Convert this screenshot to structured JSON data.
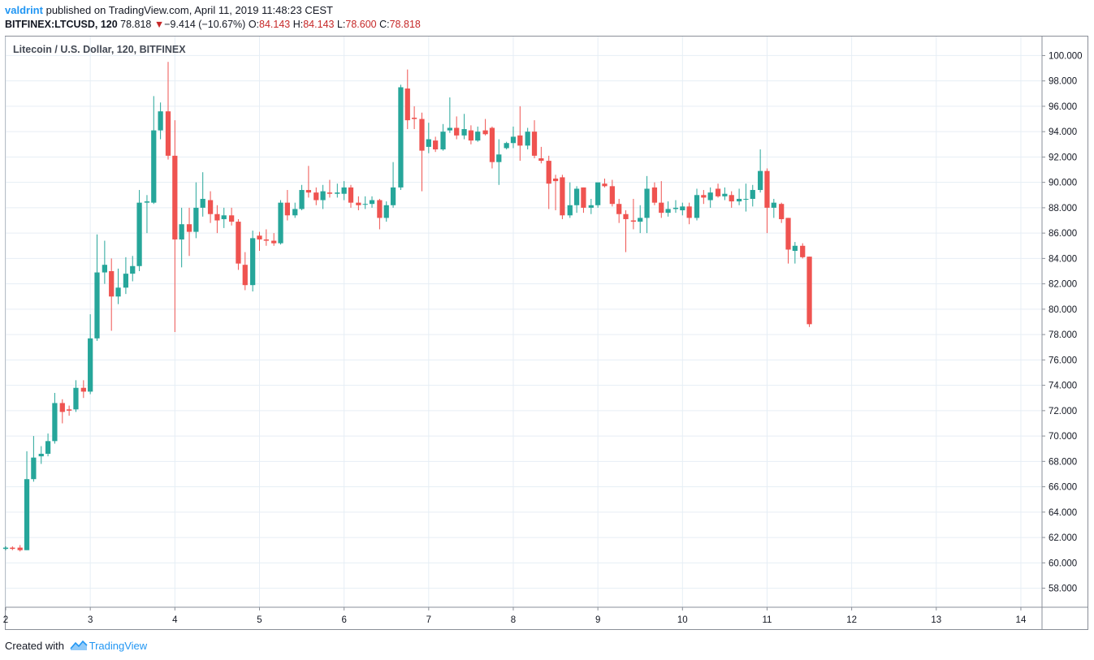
{
  "header": {
    "author": "valdrint",
    "published_text": "published on TradingView.com, April 11, 2019 11:48:23 CEST",
    "symbol": "BITFINEX:LTCUSD, 120",
    "last": "78.818",
    "change_arrow": "▼",
    "change": "−9.414 (−10.67%)",
    "o_label": "O:",
    "o_value": "84.143",
    "h_label": "H:",
    "h_value": "84.143",
    "l_label": "L:",
    "l_value": "78.600",
    "c_label": "C:",
    "c_value": "78.818"
  },
  "footer": {
    "created_with": "Created with",
    "brand": "TradingView",
    "logo_icon": "tradingview-logo-icon"
  },
  "colors": {
    "up": "#26a69a",
    "down": "#ef5350",
    "grid": "#e6eef5",
    "axis_text": "#131722",
    "brand": "#2196f3"
  },
  "chart_data": {
    "type": "candlestick",
    "title": "Litecoin / U.S. Dollar, 120, BITFINEX",
    "x_tick_labels": [
      "2",
      "3",
      "4",
      "5",
      "6",
      "7",
      "8",
      "9",
      "10",
      "11",
      "12",
      "13",
      "14"
    ],
    "x_ticks": [
      2,
      3,
      4,
      5,
      6,
      7,
      8,
      9,
      10,
      11,
      12,
      13,
      14
    ],
    "xlim": [
      2.0,
      14.25
    ],
    "ylim": [
      56.5,
      101.5
    ],
    "y_ticks": [
      58,
      60,
      62,
      64,
      66,
      68,
      70,
      72,
      74,
      76,
      78,
      80,
      82,
      84,
      86,
      88,
      90,
      92,
      94,
      96,
      98,
      100
    ],
    "y_tick_labels": [
      "58.000",
      "60.000",
      "62.000",
      "64.000",
      "66.000",
      "68.000",
      "70.000",
      "72.000",
      "74.000",
      "76.000",
      "78.000",
      "80.000",
      "82.000",
      "84.000",
      "86.000",
      "88.000",
      "90.000",
      "92.000",
      "94.000",
      "96.000",
      "98.000",
      "100.000"
    ],
    "candle_interval_days": 0.0833,
    "grid": true,
    "candles": [
      {
        "t": 2.0,
        "o": 61.1,
        "h": 61.3,
        "l": 61.0,
        "c": 61.2
      },
      {
        "t": 2.08,
        "o": 61.2,
        "h": 61.3,
        "l": 61.0,
        "c": 61.1
      },
      {
        "t": 2.17,
        "o": 61.2,
        "h": 61.4,
        "l": 60.9,
        "c": 61.0
      },
      {
        "t": 2.25,
        "o": 61.0,
        "h": 68.8,
        "l": 61.0,
        "c": 66.6
      },
      {
        "t": 2.33,
        "o": 66.6,
        "h": 70.0,
        "l": 66.4,
        "c": 68.3
      },
      {
        "t": 2.42,
        "o": 68.4,
        "h": 69.2,
        "l": 67.8,
        "c": 68.6
      },
      {
        "t": 2.5,
        "o": 68.6,
        "h": 70.2,
        "l": 68.4,
        "c": 69.6
      },
      {
        "t": 2.58,
        "o": 69.6,
        "h": 73.4,
        "l": 69.4,
        "c": 72.6
      },
      {
        "t": 2.67,
        "o": 72.6,
        "h": 72.9,
        "l": 71.0,
        "c": 71.9
      },
      {
        "t": 2.75,
        "o": 72.1,
        "h": 72.4,
        "l": 71.6,
        "c": 72.0
      },
      {
        "t": 2.83,
        "o": 72.1,
        "h": 74.4,
        "l": 71.9,
        "c": 73.8
      },
      {
        "t": 2.92,
        "o": 73.8,
        "h": 74.4,
        "l": 73.0,
        "c": 73.5
      },
      {
        "t": 3.0,
        "o": 73.5,
        "h": 79.6,
        "l": 73.3,
        "c": 77.7
      },
      {
        "t": 3.08,
        "o": 77.7,
        "h": 85.9,
        "l": 77.5,
        "c": 82.9
      },
      {
        "t": 3.17,
        "o": 82.9,
        "h": 85.4,
        "l": 82.0,
        "c": 83.5
      },
      {
        "t": 3.25,
        "o": 83.0,
        "h": 84.0,
        "l": 78.3,
        "c": 81.0
      },
      {
        "t": 3.33,
        "o": 81.0,
        "h": 83.2,
        "l": 80.4,
        "c": 81.7
      },
      {
        "t": 3.42,
        "o": 81.7,
        "h": 84.1,
        "l": 81.2,
        "c": 82.8
      },
      {
        "t": 3.5,
        "o": 82.8,
        "h": 84.2,
        "l": 82.2,
        "c": 83.4
      },
      {
        "t": 3.58,
        "o": 83.4,
        "h": 89.4,
        "l": 83.0,
        "c": 88.4
      },
      {
        "t": 3.67,
        "o": 88.4,
        "h": 89.0,
        "l": 86.0,
        "c": 88.5
      },
      {
        "t": 3.75,
        "o": 88.4,
        "h": 96.8,
        "l": 88.3,
        "c": 94.1
      },
      {
        "t": 3.83,
        "o": 94.1,
        "h": 96.3,
        "l": 93.4,
        "c": 95.6
      },
      {
        "t": 3.92,
        "o": 95.6,
        "h": 99.5,
        "l": 91.8,
        "c": 92.1
      },
      {
        "t": 4.0,
        "o": 92.1,
        "h": 94.9,
        "l": 78.2,
        "c": 85.5
      },
      {
        "t": 4.08,
        "o": 85.5,
        "h": 88.0,
        "l": 83.3,
        "c": 86.7
      },
      {
        "t": 4.17,
        "o": 86.7,
        "h": 88.0,
        "l": 84.2,
        "c": 86.1
      },
      {
        "t": 4.25,
        "o": 86.1,
        "h": 90.0,
        "l": 85.6,
        "c": 88.0
      },
      {
        "t": 4.33,
        "o": 88.0,
        "h": 90.8,
        "l": 87.3,
        "c": 88.7
      },
      {
        "t": 4.42,
        "o": 88.6,
        "h": 89.3,
        "l": 86.8,
        "c": 87.5
      },
      {
        "t": 4.5,
        "o": 87.5,
        "h": 88.2,
        "l": 86.0,
        "c": 87.0
      },
      {
        "t": 4.58,
        "o": 87.1,
        "h": 88.0,
        "l": 86.4,
        "c": 87.4
      },
      {
        "t": 4.67,
        "o": 87.4,
        "h": 88.0,
        "l": 86.6,
        "c": 86.9
      },
      {
        "t": 4.75,
        "o": 86.9,
        "h": 87.1,
        "l": 83.1,
        "c": 83.6
      },
      {
        "t": 4.83,
        "o": 83.5,
        "h": 84.5,
        "l": 81.5,
        "c": 81.9
      },
      {
        "t": 4.92,
        "o": 81.9,
        "h": 86.2,
        "l": 81.4,
        "c": 85.6
      },
      {
        "t": 5.0,
        "o": 85.8,
        "h": 86.1,
        "l": 84.6,
        "c": 85.5
      },
      {
        "t": 5.08,
        "o": 85.5,
        "h": 86.3,
        "l": 85.0,
        "c": 85.4
      },
      {
        "t": 5.17,
        "o": 85.4,
        "h": 86.0,
        "l": 85.0,
        "c": 85.2
      },
      {
        "t": 5.25,
        "o": 85.2,
        "h": 88.6,
        "l": 85.1,
        "c": 88.4
      },
      {
        "t": 5.33,
        "o": 88.4,
        "h": 89.4,
        "l": 87.0,
        "c": 87.4
      },
      {
        "t": 5.42,
        "o": 87.4,
        "h": 88.4,
        "l": 87.2,
        "c": 87.9
      },
      {
        "t": 5.5,
        "o": 87.9,
        "h": 89.8,
        "l": 87.8,
        "c": 89.4
      },
      {
        "t": 5.58,
        "o": 89.4,
        "h": 91.3,
        "l": 88.8,
        "c": 89.2
      },
      {
        "t": 5.67,
        "o": 89.2,
        "h": 89.6,
        "l": 88.2,
        "c": 88.6
      },
      {
        "t": 5.75,
        "o": 88.6,
        "h": 89.8,
        "l": 87.9,
        "c": 89.3
      },
      {
        "t": 5.83,
        "o": 89.2,
        "h": 90.2,
        "l": 88.8,
        "c": 89.1
      },
      {
        "t": 5.92,
        "o": 89.1,
        "h": 89.9,
        "l": 88.8,
        "c": 89.2
      },
      {
        "t": 6.0,
        "o": 89.1,
        "h": 90.1,
        "l": 88.6,
        "c": 89.6
      },
      {
        "t": 6.08,
        "o": 89.6,
        "h": 89.8,
        "l": 88.0,
        "c": 88.4
      },
      {
        "t": 6.17,
        "o": 88.4,
        "h": 88.9,
        "l": 87.8,
        "c": 88.2
      },
      {
        "t": 6.25,
        "o": 88.3,
        "h": 88.9,
        "l": 87.9,
        "c": 88.3
      },
      {
        "t": 6.33,
        "o": 88.3,
        "h": 88.9,
        "l": 88.0,
        "c": 88.6
      },
      {
        "t": 6.42,
        "o": 88.6,
        "h": 88.7,
        "l": 86.3,
        "c": 87.2
      },
      {
        "t": 6.5,
        "o": 87.2,
        "h": 88.5,
        "l": 86.9,
        "c": 88.2
      },
      {
        "t": 6.58,
        "o": 88.2,
        "h": 91.6,
        "l": 88.0,
        "c": 89.6
      },
      {
        "t": 6.67,
        "o": 89.6,
        "h": 97.7,
        "l": 89.4,
        "c": 97.5
      },
      {
        "t": 6.75,
        "o": 97.4,
        "h": 98.9,
        "l": 94.2,
        "c": 94.9
      },
      {
        "t": 6.83,
        "o": 95.1,
        "h": 96.0,
        "l": 94.2,
        "c": 95.0
      },
      {
        "t": 6.92,
        "o": 95.0,
        "h": 95.5,
        "l": 89.3,
        "c": 92.5
      },
      {
        "t": 7.0,
        "o": 92.8,
        "h": 94.7,
        "l": 92.3,
        "c": 93.4
      },
      {
        "t": 7.08,
        "o": 93.3,
        "h": 93.6,
        "l": 92.4,
        "c": 92.6
      },
      {
        "t": 7.17,
        "o": 92.6,
        "h": 94.6,
        "l": 92.5,
        "c": 94.0
      },
      {
        "t": 7.25,
        "o": 94.1,
        "h": 96.7,
        "l": 93.9,
        "c": 94.3
      },
      {
        "t": 7.33,
        "o": 94.3,
        "h": 95.2,
        "l": 93.4,
        "c": 93.7
      },
      {
        "t": 7.42,
        "o": 93.7,
        "h": 95.4,
        "l": 93.4,
        "c": 94.2
      },
      {
        "t": 7.5,
        "o": 94.1,
        "h": 94.5,
        "l": 93.0,
        "c": 93.3
      },
      {
        "t": 7.58,
        "o": 93.3,
        "h": 94.4,
        "l": 93.2,
        "c": 94.0
      },
      {
        "t": 7.67,
        "o": 94.1,
        "h": 95.0,
        "l": 93.7,
        "c": 93.8
      },
      {
        "t": 7.75,
        "o": 94.3,
        "h": 94.4,
        "l": 91.1,
        "c": 91.6
      },
      {
        "t": 7.83,
        "o": 91.6,
        "h": 93.4,
        "l": 89.8,
        "c": 92.2
      },
      {
        "t": 7.92,
        "o": 92.7,
        "h": 93.2,
        "l": 92.6,
        "c": 93.1
      },
      {
        "t": 8.0,
        "o": 93.1,
        "h": 94.4,
        "l": 92.7,
        "c": 93.6
      },
      {
        "t": 8.08,
        "o": 93.7,
        "h": 96.0,
        "l": 91.7,
        "c": 92.9
      },
      {
        "t": 8.17,
        "o": 92.9,
        "h": 94.3,
        "l": 92.6,
        "c": 94.0
      },
      {
        "t": 8.25,
        "o": 94.0,
        "h": 94.9,
        "l": 91.9,
        "c": 92.1
      },
      {
        "t": 8.33,
        "o": 91.9,
        "h": 92.8,
        "l": 91.5,
        "c": 91.7
      },
      {
        "t": 8.42,
        "o": 91.7,
        "h": 92.1,
        "l": 87.9,
        "c": 89.9
      },
      {
        "t": 8.5,
        "o": 90.3,
        "h": 90.6,
        "l": 87.8,
        "c": 90.1
      },
      {
        "t": 8.58,
        "o": 90.4,
        "h": 90.6,
        "l": 87.1,
        "c": 87.4
      },
      {
        "t": 8.67,
        "o": 87.4,
        "h": 90.0,
        "l": 87.2,
        "c": 88.2
      },
      {
        "t": 8.75,
        "o": 88.2,
        "h": 89.7,
        "l": 87.6,
        "c": 89.5
      },
      {
        "t": 8.83,
        "o": 89.6,
        "h": 89.6,
        "l": 87.6,
        "c": 88.0
      },
      {
        "t": 8.92,
        "o": 88.0,
        "h": 88.7,
        "l": 87.5,
        "c": 88.2
      },
      {
        "t": 9.0,
        "o": 88.2,
        "h": 89.8,
        "l": 88.0,
        "c": 90.0
      },
      {
        "t": 9.08,
        "o": 89.9,
        "h": 90.3,
        "l": 89.6,
        "c": 89.7
      },
      {
        "t": 9.17,
        "o": 89.7,
        "h": 90.2,
        "l": 88.1,
        "c": 88.3
      },
      {
        "t": 9.25,
        "o": 88.3,
        "h": 88.7,
        "l": 86.8,
        "c": 87.5
      },
      {
        "t": 9.33,
        "o": 87.5,
        "h": 87.8,
        "l": 84.5,
        "c": 87.1
      },
      {
        "t": 9.42,
        "o": 87.0,
        "h": 88.7,
        "l": 86.3,
        "c": 86.9
      },
      {
        "t": 9.5,
        "o": 86.9,
        "h": 88.2,
        "l": 86.0,
        "c": 87.2
      },
      {
        "t": 9.58,
        "o": 87.2,
        "h": 90.5,
        "l": 86.0,
        "c": 89.5
      },
      {
        "t": 9.67,
        "o": 89.6,
        "h": 90.0,
        "l": 88.2,
        "c": 88.4
      },
      {
        "t": 9.75,
        "o": 88.4,
        "h": 90.1,
        "l": 87.2,
        "c": 87.6
      },
      {
        "t": 9.83,
        "o": 87.6,
        "h": 88.5,
        "l": 87.3,
        "c": 87.9
      },
      {
        "t": 9.92,
        "o": 87.9,
        "h": 88.6,
        "l": 87.6,
        "c": 88.0
      },
      {
        "t": 10.0,
        "o": 87.8,
        "h": 88.4,
        "l": 87.4,
        "c": 88.1
      },
      {
        "t": 10.08,
        "o": 88.1,
        "h": 88.4,
        "l": 86.7,
        "c": 87.2
      },
      {
        "t": 10.17,
        "o": 87.2,
        "h": 89.5,
        "l": 87.0,
        "c": 89.0
      },
      {
        "t": 10.25,
        "o": 89.0,
        "h": 89.4,
        "l": 88.3,
        "c": 88.8
      },
      {
        "t": 10.33,
        "o": 88.6,
        "h": 89.6,
        "l": 88.0,
        "c": 89.2
      },
      {
        "t": 10.42,
        "o": 89.5,
        "h": 89.9,
        "l": 88.8,
        "c": 88.9
      },
      {
        "t": 10.5,
        "o": 88.9,
        "h": 89.6,
        "l": 88.6,
        "c": 89.1
      },
      {
        "t": 10.58,
        "o": 89.0,
        "h": 89.3,
        "l": 88.0,
        "c": 88.5
      },
      {
        "t": 10.67,
        "o": 88.5,
        "h": 89.5,
        "l": 88.2,
        "c": 88.7
      },
      {
        "t": 10.75,
        "o": 88.7,
        "h": 89.9,
        "l": 87.7,
        "c": 88.7
      },
      {
        "t": 10.83,
        "o": 88.7,
        "h": 89.8,
        "l": 88.1,
        "c": 89.4
      },
      {
        "t": 10.92,
        "o": 89.4,
        "h": 92.6,
        "l": 89.2,
        "c": 90.9
      },
      {
        "t": 11.0,
        "o": 90.9,
        "h": 91.1,
        "l": 86.0,
        "c": 88.0
      },
      {
        "t": 11.08,
        "o": 88.0,
        "h": 88.7,
        "l": 87.2,
        "c": 88.4
      },
      {
        "t": 11.17,
        "o": 88.3,
        "h": 88.4,
        "l": 86.8,
        "c": 87.1
      },
      {
        "t": 11.25,
        "o": 87.2,
        "h": 87.2,
        "l": 83.6,
        "c": 84.7
      },
      {
        "t": 11.33,
        "o": 84.6,
        "h": 85.3,
        "l": 83.6,
        "c": 85.0
      },
      {
        "t": 11.42,
        "o": 85.0,
        "h": 85.2,
        "l": 84.0,
        "c": 84.1
      },
      {
        "t": 11.5,
        "o": 84.143,
        "h": 84.143,
        "l": 78.6,
        "c": 78.818
      }
    ]
  }
}
